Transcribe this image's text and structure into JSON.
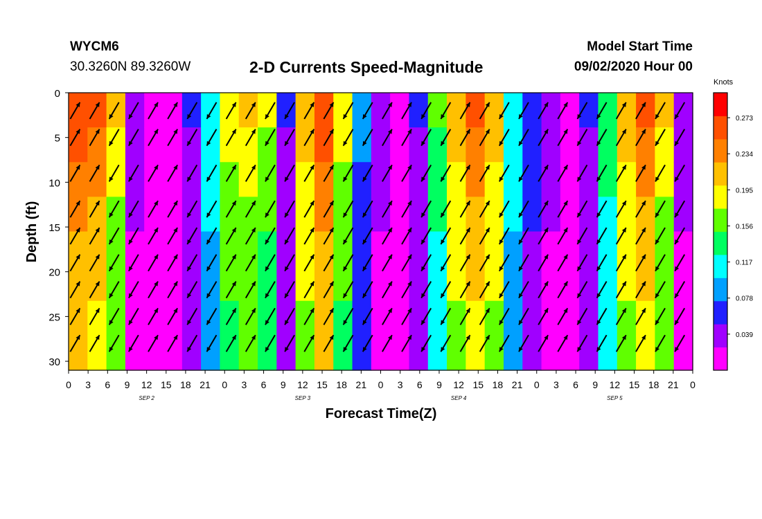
{
  "header": {
    "station": "WYCM6",
    "coords": "30.3260N 89.3260W",
    "title": "2-D Currents Speed-Magnitude",
    "start_label": "Model Start Time",
    "start_value": "09/02/2020 Hour 00"
  },
  "chart_data": {
    "type": "heatmap",
    "title": "2-D Currents Speed-Magnitude",
    "xlabel": "Forecast Time(Z)",
    "ylabel": "Depth (ft)",
    "x_tick_labels": [
      "0",
      "3",
      "6",
      "9",
      "12",
      "15",
      "18",
      "21",
      "0",
      "3",
      "6",
      "9",
      "12",
      "15",
      "18",
      "21",
      "0",
      "3",
      "6",
      "9",
      "12",
      "15",
      "18",
      "21",
      "0",
      "3",
      "6",
      "9",
      "12",
      "15",
      "18",
      "21",
      "0"
    ],
    "x_day_labels": [
      "SEP 2",
      "SEP 3",
      "SEP 4",
      "SEP 5"
    ],
    "x_range_hours": [
      0,
      96
    ],
    "y_ticks": [
      0,
      5,
      10,
      15,
      20,
      25,
      30
    ],
    "y_range_ft": [
      0,
      31
    ],
    "y_inverted": true,
    "colorbar": {
      "units": "Knots",
      "tick_labels": [
        "0.273",
        "0.234",
        "0.195",
        "0.156",
        "0.117",
        "0.078",
        "0.039"
      ],
      "ticks": [
        0.273,
        0.234,
        0.195,
        0.156,
        0.117,
        0.078,
        0.039
      ],
      "range": [
        0.0,
        0.3
      ],
      "colors": [
        "#ff00ff",
        "#a000ff",
        "#2020ff",
        "#00a0ff",
        "#00ffff",
        "#00ff60",
        "#60ff00",
        "#ffff00",
        "#ffc000",
        "#ff8000",
        "#ff5000",
        "#ff0000"
      ]
    },
    "surface_speed_by_hour": [
      0.27,
      0.25,
      0.2,
      0.03,
      0.02,
      0.02,
      0.05,
      0.12,
      0.19,
      0.2,
      0.18,
      0.05,
      0.22,
      0.27,
      0.19,
      0.08,
      0.03,
      0.02,
      0.05,
      0.15,
      0.22,
      0.25,
      0.22,
      0.12,
      0.06,
      0.03,
      0.02,
      0.05,
      0.14,
      0.22,
      0.26,
      0.2,
      0.03
    ],
    "depth_profile_factor": [
      1.0,
      0.95,
      0.9,
      0.85,
      0.8,
      0.8,
      0.75,
      0.75
    ]
  }
}
